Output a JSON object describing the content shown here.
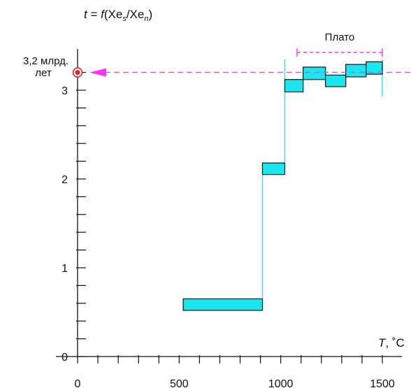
{
  "chart_data": {
    "type": "bar",
    "title": {
      "prefix": "t = f(Xe",
      "sub1": "s",
      "mid": "/Xe",
      "sub2": "n",
      "suffix": ")"
    },
    "xlabel": {
      "var": "T",
      "unit": ", ˚C"
    },
    "x_ticks": [
      0,
      500,
      1000,
      1500
    ],
    "y_ticks": [
      0,
      1,
      2,
      3
    ],
    "xlim": [
      0,
      1500
    ],
    "ylim": [
      0,
      3.2
    ],
    "steps": [
      {
        "x_start": 520,
        "x_end": 910,
        "y_low": 0.52,
        "y_high": 0.65
      },
      {
        "x_start": 910,
        "x_end": 1020,
        "y_low": 2.05,
        "y_high": 2.18
      },
      {
        "x_start": 1020,
        "x_end": 1110,
        "y_low": 2.98,
        "y_high": 3.12
      },
      {
        "x_start": 1110,
        "x_end": 1220,
        "y_low": 3.12,
        "y_high": 3.26
      },
      {
        "x_start": 1220,
        "x_end": 1320,
        "y_low": 3.04,
        "y_high": 3.17
      },
      {
        "x_start": 1320,
        "x_end": 1420,
        "y_low": 3.15,
        "y_high": 3.29
      },
      {
        "x_start": 1420,
        "x_end": 1500,
        "y_low": 3.18,
        "y_high": 3.32
      }
    ],
    "error_bar_low": 3.0,
    "error_bar_high": 3.35,
    "plateau": {
      "label": "Плато",
      "x_start": 1080,
      "x_end": 1500
    },
    "plateau_age": {
      "value": 3.2,
      "label_line1": "3,2 млрд.",
      "label_line2": "лет"
    },
    "colors": {
      "fill": "#1ce5ee",
      "stroke": "#111111",
      "magenta": "#ff33ff",
      "marker": "#e8202a"
    }
  }
}
